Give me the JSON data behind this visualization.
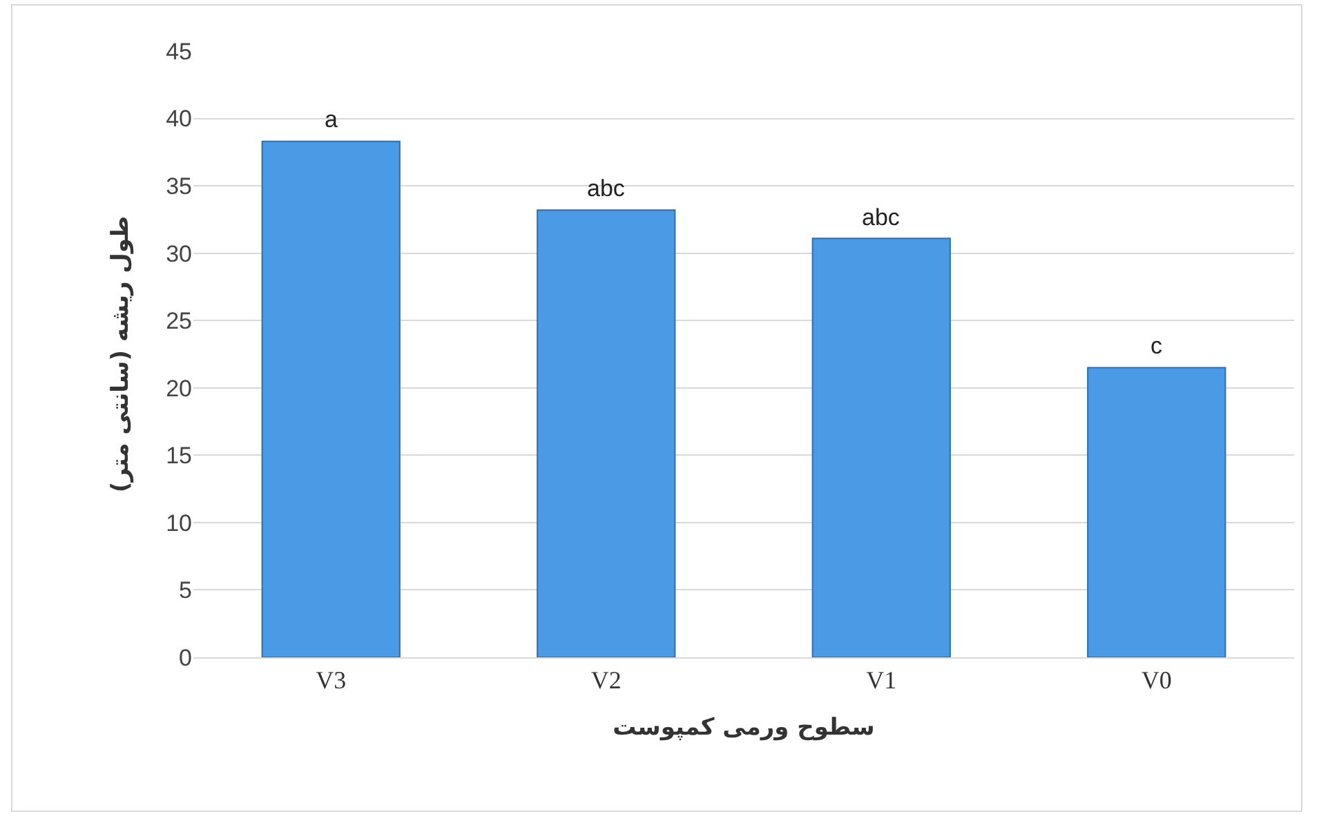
{
  "chart_data": {
    "type": "bar",
    "xlabel": "سطوح ورمی کمپوست",
    "ylabel": "طول ریشه (سانتی متر)",
    "categories": [
      "V3",
      "V2",
      "V1",
      "V0"
    ],
    "values": [
      38.3,
      33.2,
      31.1,
      21.5
    ],
    "color": "#4a9ae6",
    "ylim": [
      0,
      45
    ],
    "yticks": [
      0,
      5,
      10,
      15,
      20,
      25,
      30,
      35,
      40,
      45
    ],
    "grid": "y",
    "annotations": [
      {
        "text": "a",
        "x": "V3",
        "y": 38.3
      },
      {
        "text": "abc",
        "x": "V2",
        "y": 33.2
      },
      {
        "text": "abc",
        "x": "V1",
        "y": 31.1
      },
      {
        "text": "c",
        "x": "V0",
        "y": 21.5
      }
    ]
  }
}
